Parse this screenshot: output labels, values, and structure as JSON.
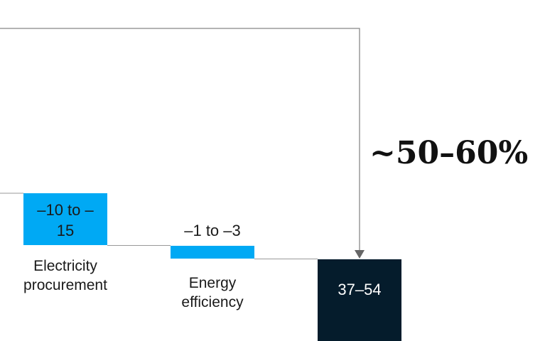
{
  "chart_data": {
    "type": "waterfall",
    "bars": [
      {
        "category": "Electricity procurement",
        "label": "–10 to –15",
        "low": -15,
        "high": -10,
        "kind": "decrease",
        "color": "#00A9F4"
      },
      {
        "category": "Energy efficiency",
        "label": "–1 to –3",
        "low": -3,
        "high": -1,
        "kind": "decrease",
        "color": "#00A9F4"
      },
      {
        "category": "",
        "label": "37–54",
        "low": 37,
        "high": 54,
        "kind": "total",
        "color": "#051C2C"
      }
    ],
    "annotation": "~50–60%",
    "colors": {
      "decrease": "#00A9F4",
      "total": "#051C2C",
      "connector": "#999999",
      "bracket": "#888888"
    }
  }
}
